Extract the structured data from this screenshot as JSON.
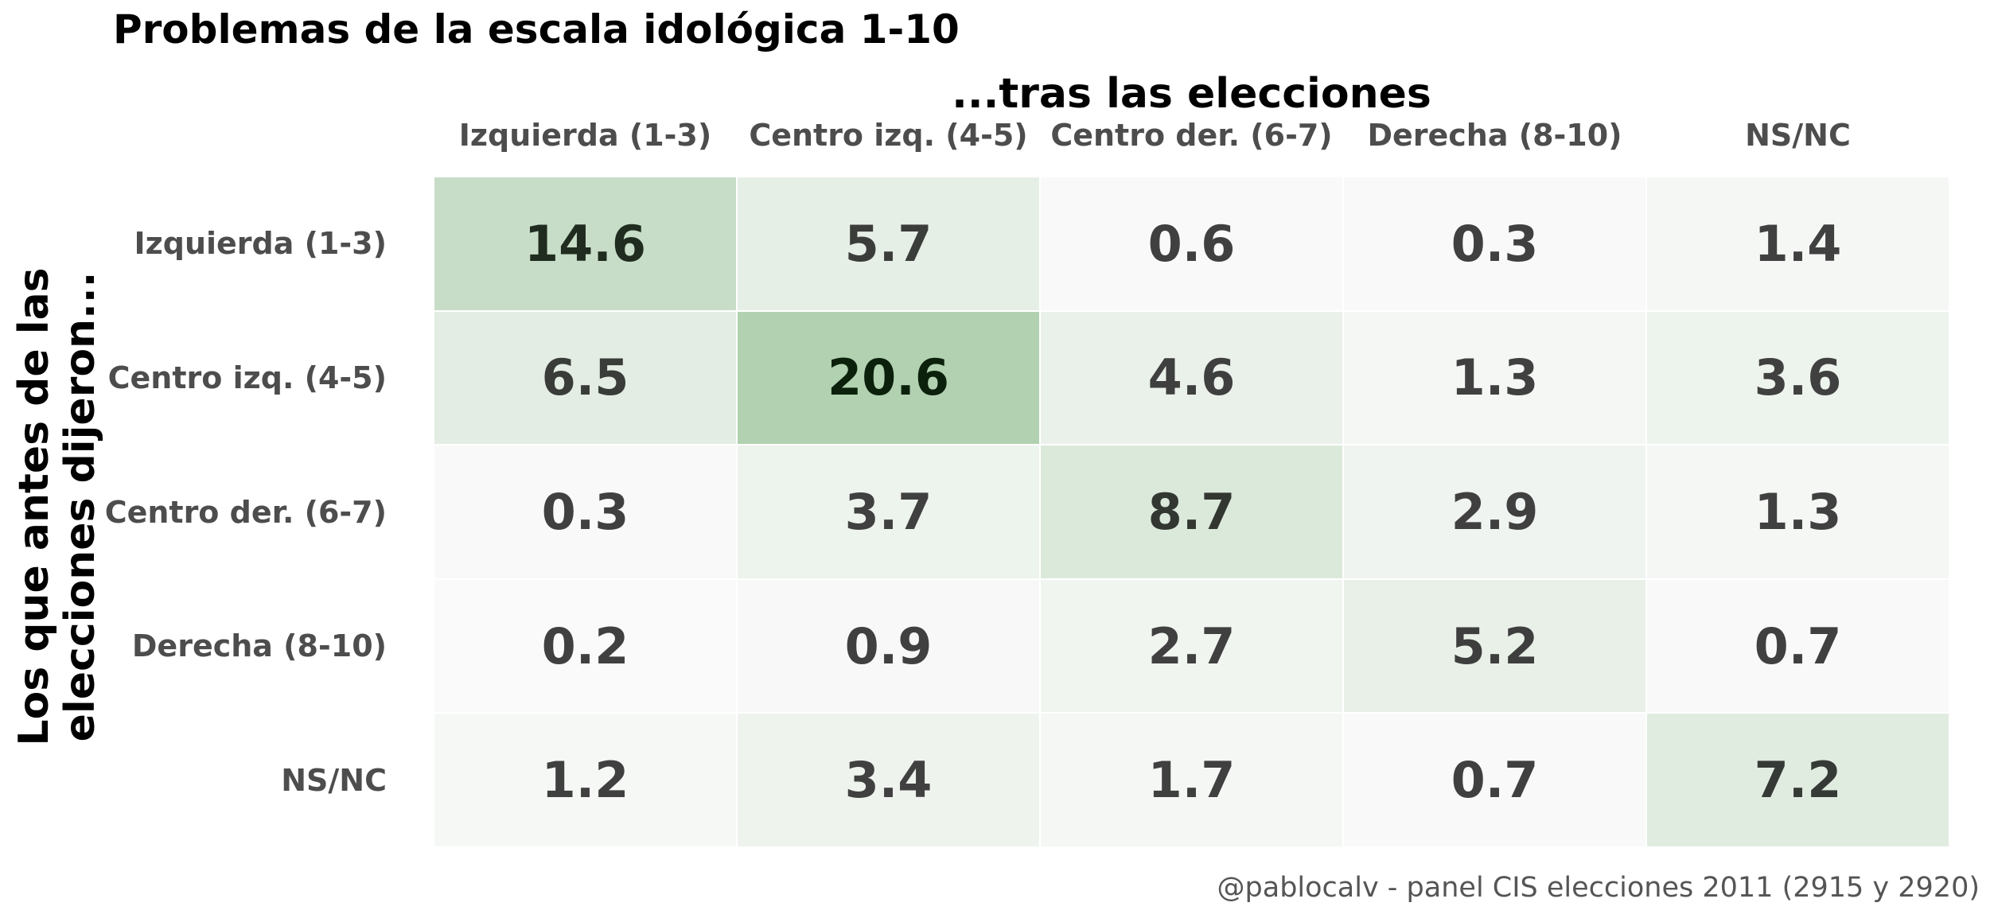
{
  "chart_data": {
    "type": "heatmap",
    "title": "Problemas de la escala idológica 1-10",
    "xlabel": "...tras las elecciones",
    "ylabel": "Los que antes de las\nelecciones dijeron...",
    "x_categories": [
      "Izquierda (1-3)",
      "Centro izq. (4-5)",
      "Centro der. (6-7)",
      "Derecha (8-10)",
      "NS/NC"
    ],
    "y_categories": [
      "Izquierda (1-3)",
      "Centro izq. (4-5)",
      "Centro der. (6-7)",
      "Derecha (8-10)",
      "NS/NC"
    ],
    "values": [
      [
        14.6,
        5.7,
        0.6,
        0.3,
        1.4
      ],
      [
        6.5,
        20.6,
        4.6,
        1.3,
        3.6
      ],
      [
        0.3,
        3.7,
        8.7,
        2.9,
        1.3
      ],
      [
        0.2,
        0.9,
        2.7,
        5.2,
        0.7
      ],
      [
        1.2,
        3.4,
        1.7,
        0.7,
        7.2
      ]
    ],
    "value_format": "0.1f",
    "colormap": {
      "low": "#fafafa",
      "high": "#b0d0b0",
      "vmin": 0,
      "vmax": 21
    },
    "text_color": "#404040",
    "legend": "none",
    "grid": false
  },
  "caption": "@pablocalv - panel CIS elecciones 2011 (2915 y 2920)"
}
